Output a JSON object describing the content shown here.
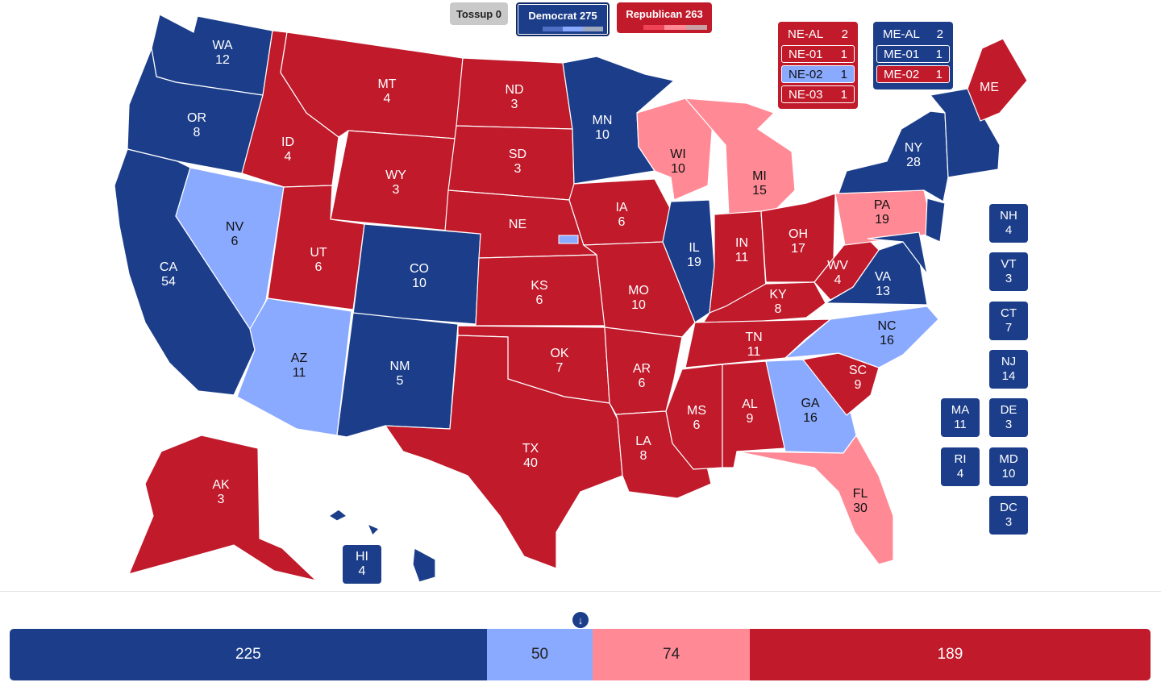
{
  "colors": {
    "safe_d": "#1c3e8a",
    "lean_d": "#8aaaff",
    "lean_r": "#ff8a96",
    "safe_r": "#c01a2b",
    "tossup": "#c9c9c9"
  },
  "header": {
    "tossup_label": "Tossup 0",
    "dem_label": "Democrat 275",
    "rep_label": "Republican 263"
  },
  "nebraska": {
    "rows": [
      {
        "label": "NE-AL",
        "votes": "2",
        "rating": "safe_r"
      },
      {
        "label": "NE-01",
        "votes": "1",
        "rating": "safe_r"
      },
      {
        "label": "NE-02",
        "votes": "1",
        "rating": "lean_d"
      },
      {
        "label": "NE-03",
        "votes": "1",
        "rating": "safe_r"
      }
    ]
  },
  "maine": {
    "rows": [
      {
        "label": "ME-AL",
        "votes": "2",
        "rating": "safe_d"
      },
      {
        "label": "ME-01",
        "votes": "1",
        "rating": "safe_d"
      },
      {
        "label": "ME-02",
        "votes": "1",
        "rating": "safe_r"
      }
    ]
  },
  "states": [
    {
      "abbr": "WA",
      "ev": "12",
      "rating": "safe_d"
    },
    {
      "abbr": "OR",
      "ev": "8",
      "rating": "safe_d"
    },
    {
      "abbr": "CA",
      "ev": "54",
      "rating": "safe_d"
    },
    {
      "abbr": "NV",
      "ev": "6",
      "rating": "lean_d"
    },
    {
      "abbr": "ID",
      "ev": "4",
      "rating": "safe_r"
    },
    {
      "abbr": "MT",
      "ev": "4",
      "rating": "safe_r"
    },
    {
      "abbr": "WY",
      "ev": "3",
      "rating": "safe_r"
    },
    {
      "abbr": "UT",
      "ev": "6",
      "rating": "safe_r"
    },
    {
      "abbr": "AZ",
      "ev": "11",
      "rating": "lean_d"
    },
    {
      "abbr": "CO",
      "ev": "10",
      "rating": "safe_d"
    },
    {
      "abbr": "NM",
      "ev": "5",
      "rating": "safe_d"
    },
    {
      "abbr": "ND",
      "ev": "3",
      "rating": "safe_r"
    },
    {
      "abbr": "SD",
      "ev": "3",
      "rating": "safe_r"
    },
    {
      "abbr": "NE",
      "ev": "",
      "rating": "safe_r"
    },
    {
      "abbr": "KS",
      "ev": "6",
      "rating": "safe_r"
    },
    {
      "abbr": "OK",
      "ev": "7",
      "rating": "safe_r"
    },
    {
      "abbr": "TX",
      "ev": "40",
      "rating": "safe_r"
    },
    {
      "abbr": "MN",
      "ev": "10",
      "rating": "safe_d"
    },
    {
      "abbr": "IA",
      "ev": "6",
      "rating": "safe_r"
    },
    {
      "abbr": "MO",
      "ev": "10",
      "rating": "safe_r"
    },
    {
      "abbr": "AR",
      "ev": "6",
      "rating": "safe_r"
    },
    {
      "abbr": "LA",
      "ev": "8",
      "rating": "safe_r"
    },
    {
      "abbr": "WI",
      "ev": "10",
      "rating": "lean_r"
    },
    {
      "abbr": "IL",
      "ev": "19",
      "rating": "safe_d"
    },
    {
      "abbr": "MI",
      "ev": "15",
      "rating": "lean_r"
    },
    {
      "abbr": "IN",
      "ev": "11",
      "rating": "safe_r"
    },
    {
      "abbr": "OH",
      "ev": "17",
      "rating": "safe_r"
    },
    {
      "abbr": "KY",
      "ev": "8",
      "rating": "safe_r"
    },
    {
      "abbr": "TN",
      "ev": "11",
      "rating": "safe_r"
    },
    {
      "abbr": "MS",
      "ev": "6",
      "rating": "safe_r"
    },
    {
      "abbr": "AL",
      "ev": "9",
      "rating": "safe_r"
    },
    {
      "abbr": "GA",
      "ev": "16",
      "rating": "lean_d"
    },
    {
      "abbr": "FL",
      "ev": "30",
      "rating": "lean_r"
    },
    {
      "abbr": "SC",
      "ev": "9",
      "rating": "safe_r"
    },
    {
      "abbr": "NC",
      "ev": "16",
      "rating": "lean_d"
    },
    {
      "abbr": "VA",
      "ev": "13",
      "rating": "safe_d"
    },
    {
      "abbr": "WV",
      "ev": "4",
      "rating": "safe_r"
    },
    {
      "abbr": "PA",
      "ev": "19",
      "rating": "lean_r"
    },
    {
      "abbr": "NY",
      "ev": "28",
      "rating": "safe_d"
    },
    {
      "abbr": "ME",
      "ev": "",
      "rating": "safe_r"
    },
    {
      "abbr": "AK",
      "ev": "3",
      "rating": "safe_r"
    },
    {
      "abbr": "HI",
      "ev": "4",
      "rating": "safe_d"
    }
  ],
  "small_states": [
    {
      "abbr": "NH",
      "ev": "4",
      "rating": "safe_d"
    },
    {
      "abbr": "VT",
      "ev": "3",
      "rating": "safe_d"
    },
    {
      "abbr": "CT",
      "ev": "7",
      "rating": "safe_d"
    },
    {
      "abbr": "NJ",
      "ev": "14",
      "rating": "safe_d"
    },
    {
      "abbr": "MA",
      "ev": "11",
      "rating": "safe_d"
    },
    {
      "abbr": "DE",
      "ev": "3",
      "rating": "safe_d"
    },
    {
      "abbr": "RI",
      "ev": "4",
      "rating": "safe_d"
    },
    {
      "abbr": "MD",
      "ev": "10",
      "rating": "safe_d"
    },
    {
      "abbr": "DC",
      "ev": "3",
      "rating": "safe_d"
    }
  ],
  "tally": [
    {
      "label": "225",
      "value": 225,
      "rating": "safe_d"
    },
    {
      "label": "50",
      "value": 50,
      "rating": "lean_d"
    },
    {
      "label": "74",
      "value": 74,
      "rating": "lean_r"
    },
    {
      "label": "189",
      "value": 189,
      "rating": "safe_r"
    }
  ],
  "marker_icon": "arrow-down-icon",
  "marker_glyph": "↓"
}
